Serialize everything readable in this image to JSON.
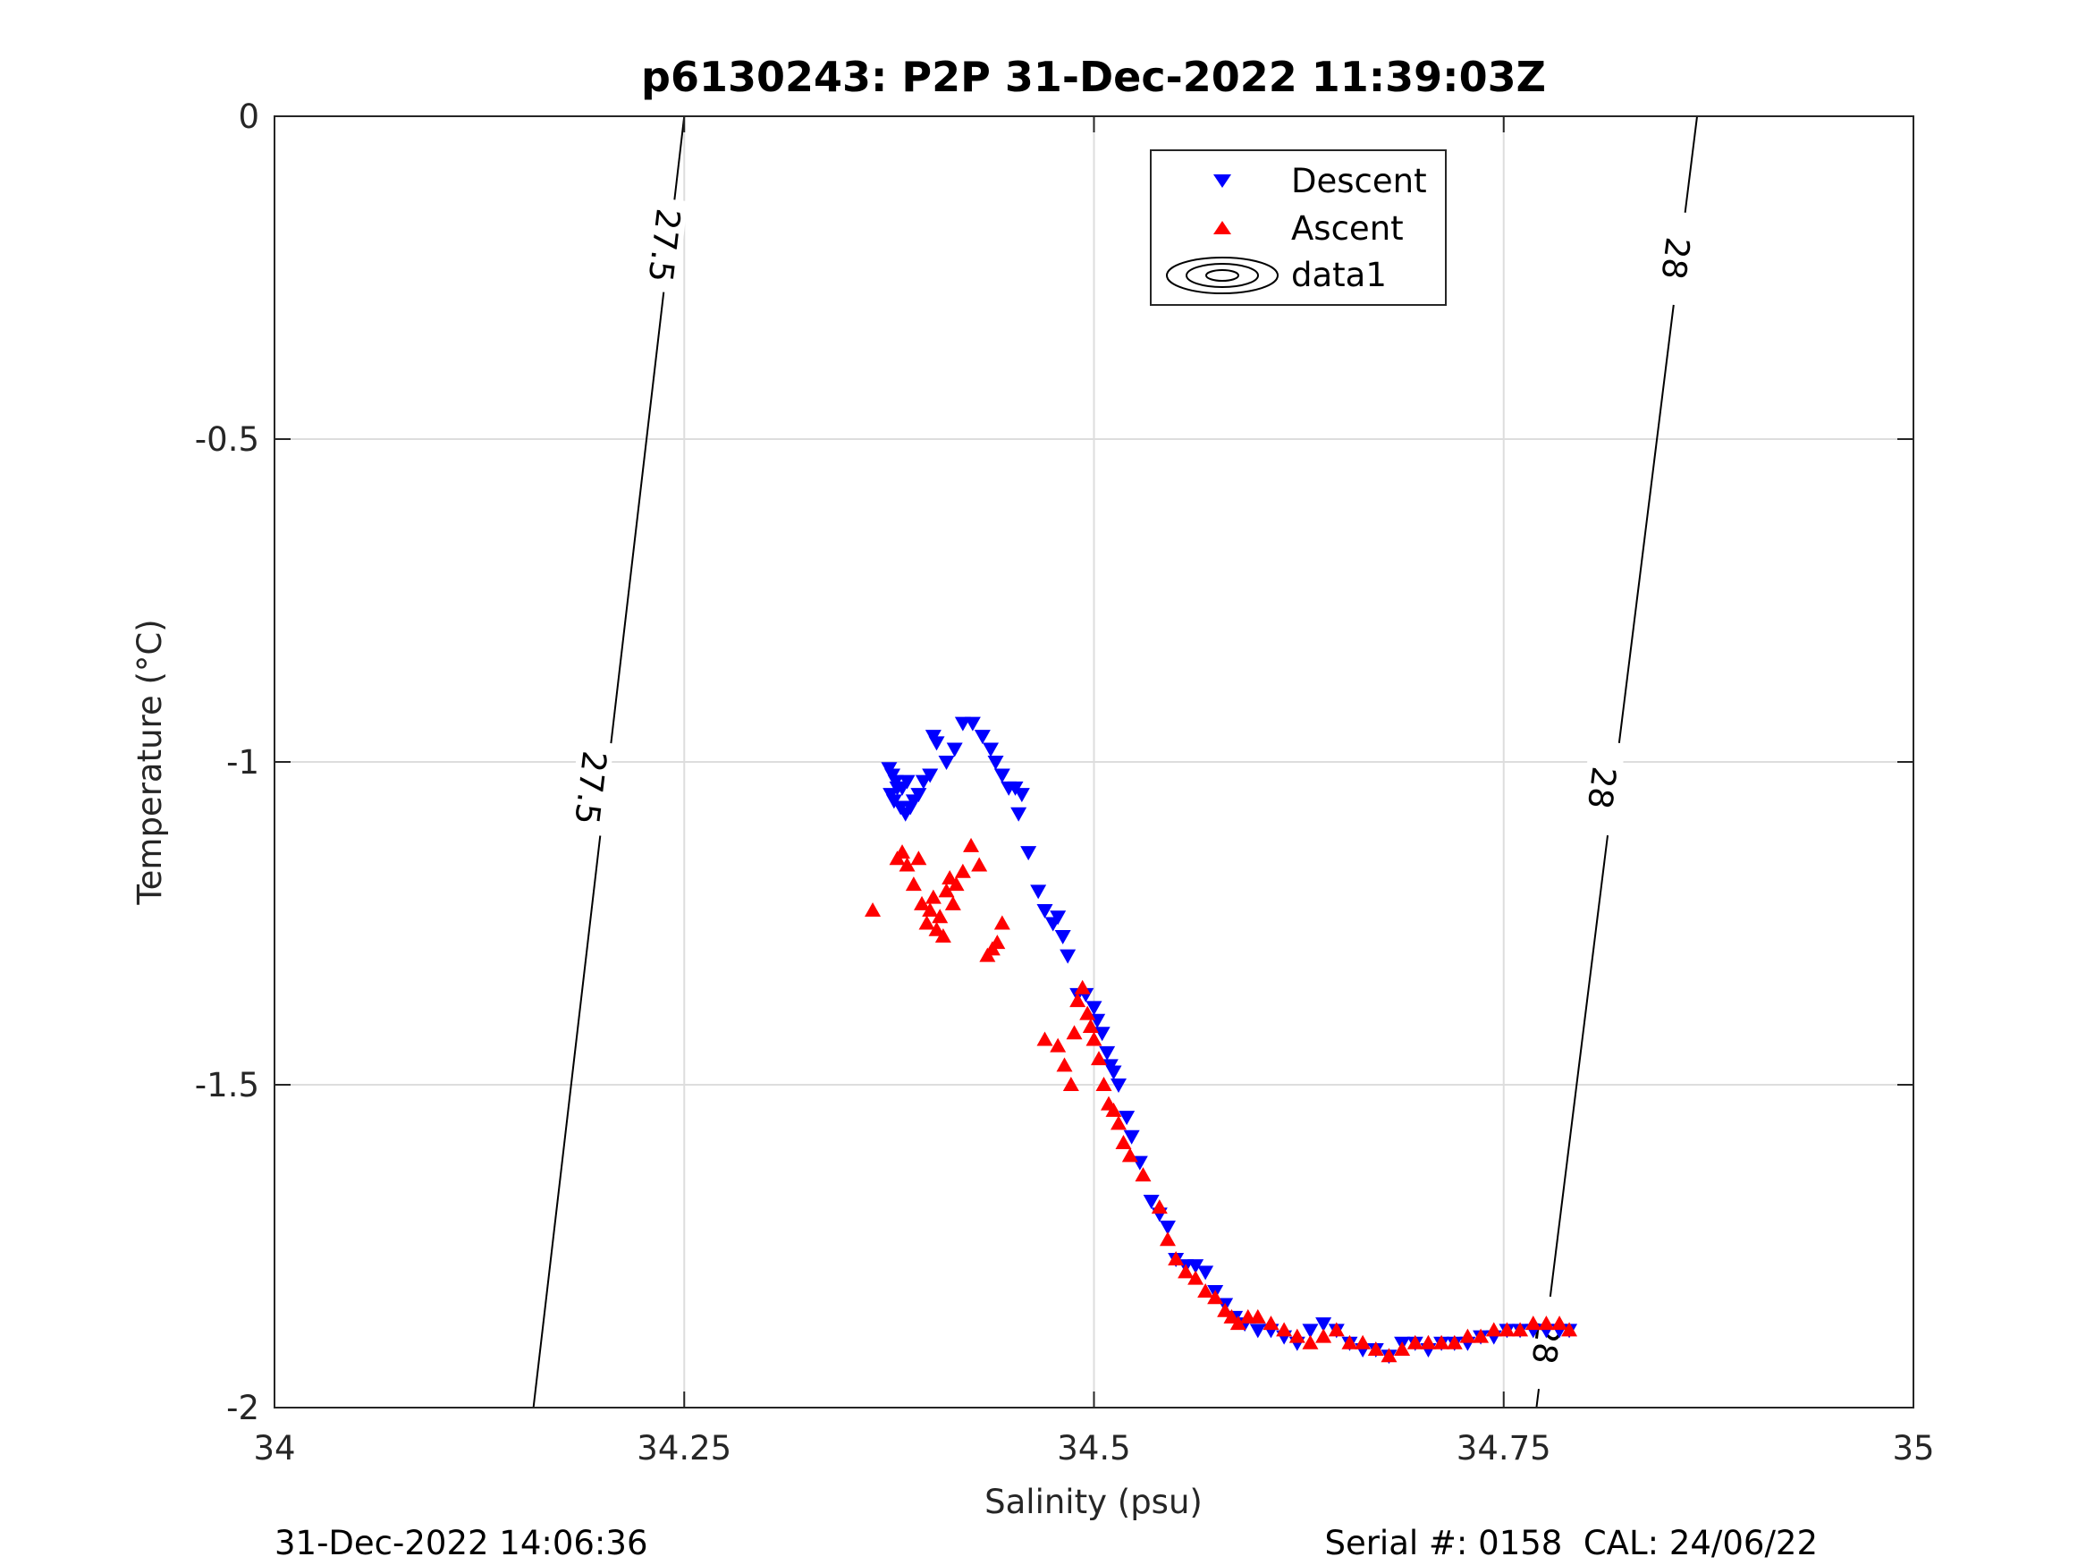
{
  "chart_data": {
    "type": "scatter",
    "title": "p6130243: P2P 31-Dec-2022 11:39:03Z",
    "xlabel": "Salinity (psu)",
    "ylabel": "Temperature (°C)",
    "xlim": [
      34,
      35
    ],
    "ylim": [
      -2,
      0
    ],
    "x_ticks": [
      34,
      34.25,
      34.5,
      34.75,
      35
    ],
    "x_tick_labels": [
      "34",
      "34.25",
      "34.5",
      "34.75",
      "35"
    ],
    "y_ticks": [
      0,
      -0.5,
      -1,
      -1.5,
      -2
    ],
    "y_tick_labels": [
      "0",
      "-0.5",
      "-1",
      "-1.5",
      "-2"
    ],
    "grid": true,
    "legend": {
      "placement": "top-center",
      "entries": [
        "Descent",
        "Ascent",
        "data1"
      ]
    },
    "colors": {
      "descent": "#0000ff",
      "ascent": "#ff0000",
      "contour": "#000000",
      "grid": "#dddddd"
    },
    "contours": [
      {
        "level": "27.5",
        "points": [
          [
            34.158,
            -2
          ],
          [
            34.25,
            0
          ]
        ],
        "label_positions": [
          [
            34.193,
            -1.04
          ],
          [
            34.238,
            -0.2
          ]
        ]
      },
      {
        "level": "28",
        "points": [
          [
            34.77,
            -2
          ],
          [
            34.868,
            0
          ]
        ],
        "label_positions": [
          [
            34.81,
            -1.04
          ],
          [
            34.855,
            -0.22
          ],
          [
            34.776,
            -1.9
          ]
        ]
      }
    ],
    "series": [
      {
        "name": "Descent",
        "marker": "triangle-down",
        "points": [
          [
            34.375,
            -1.01
          ],
          [
            34.377,
            -1.02
          ],
          [
            34.379,
            -1.03
          ],
          [
            34.38,
            -1.04
          ],
          [
            34.376,
            -1.05
          ],
          [
            34.378,
            -1.06
          ],
          [
            34.382,
            -1.07
          ],
          [
            34.385,
            -1.08
          ],
          [
            34.388,
            -1.07
          ],
          [
            34.39,
            -1.06
          ],
          [
            34.383,
            -1.04
          ],
          [
            34.386,
            -1.03
          ],
          [
            34.393,
            -1.05
          ],
          [
            34.396,
            -1.03
          ],
          [
            34.4,
            -1.02
          ],
          [
            34.404,
            -0.97
          ],
          [
            34.402,
            -0.96
          ],
          [
            34.41,
            -1.0
          ],
          [
            34.415,
            -0.98
          ],
          [
            34.42,
            -0.94
          ],
          [
            34.426,
            -0.94
          ],
          [
            34.432,
            -0.96
          ],
          [
            34.437,
            -0.98
          ],
          [
            34.44,
            -1.0
          ],
          [
            34.444,
            -1.02
          ],
          [
            34.448,
            -1.04
          ],
          [
            34.452,
            -1.04
          ],
          [
            34.456,
            -1.05
          ],
          [
            34.454,
            -1.08
          ],
          [
            34.46,
            -1.14
          ],
          [
            34.466,
            -1.2
          ],
          [
            34.47,
            -1.23
          ],
          [
            34.475,
            -1.25
          ],
          [
            34.478,
            -1.24
          ],
          [
            34.481,
            -1.27
          ],
          [
            34.484,
            -1.3
          ],
          [
            34.49,
            -1.36
          ],
          [
            34.495,
            -1.36
          ],
          [
            34.5,
            -1.38
          ],
          [
            34.502,
            -1.4
          ],
          [
            34.505,
            -1.42
          ],
          [
            34.508,
            -1.45
          ],
          [
            34.51,
            -1.47
          ],
          [
            34.512,
            -1.48
          ],
          [
            34.515,
            -1.5
          ],
          [
            34.52,
            -1.55
          ],
          [
            34.523,
            -1.58
          ],
          [
            34.528,
            -1.62
          ],
          [
            34.535,
            -1.68
          ],
          [
            34.54,
            -1.7
          ],
          [
            34.545,
            -1.72
          ],
          [
            34.55,
            -1.77
          ],
          [
            34.556,
            -1.78
          ],
          [
            34.562,
            -1.78
          ],
          [
            34.568,
            -1.79
          ],
          [
            34.574,
            -1.82
          ],
          [
            34.58,
            -1.84
          ],
          [
            34.586,
            -1.86
          ],
          [
            34.592,
            -1.87
          ],
          [
            34.6,
            -1.88
          ],
          [
            34.608,
            -1.88
          ],
          [
            34.616,
            -1.89
          ],
          [
            34.624,
            -1.9
          ],
          [
            34.632,
            -1.88
          ],
          [
            34.64,
            -1.87
          ],
          [
            34.648,
            -1.88
          ],
          [
            34.656,
            -1.9
          ],
          [
            34.664,
            -1.91
          ],
          [
            34.672,
            -1.91
          ],
          [
            34.68,
            -1.92
          ],
          [
            34.688,
            -1.9
          ],
          [
            34.696,
            -1.9
          ],
          [
            34.704,
            -1.91
          ],
          [
            34.712,
            -1.9
          ],
          [
            34.72,
            -1.9
          ],
          [
            34.728,
            -1.9
          ],
          [
            34.736,
            -1.89
          ],
          [
            34.744,
            -1.89
          ],
          [
            34.752,
            -1.88
          ],
          [
            34.76,
            -1.88
          ],
          [
            34.768,
            -1.88
          ],
          [
            34.776,
            -1.88
          ],
          [
            34.784,
            -1.88
          ],
          [
            34.79,
            -1.88
          ]
        ]
      },
      {
        "name": "Ascent",
        "marker": "triangle-up",
        "points": [
          [
            34.365,
            -1.23
          ],
          [
            34.38,
            -1.15
          ],
          [
            34.383,
            -1.14
          ],
          [
            34.386,
            -1.16
          ],
          [
            34.39,
            -1.19
          ],
          [
            34.393,
            -1.15
          ],
          [
            34.395,
            -1.22
          ],
          [
            34.398,
            -1.25
          ],
          [
            34.4,
            -1.23
          ],
          [
            34.402,
            -1.21
          ],
          [
            34.404,
            -1.26
          ],
          [
            34.406,
            -1.24
          ],
          [
            34.408,
            -1.27
          ],
          [
            34.41,
            -1.2
          ],
          [
            34.412,
            -1.18
          ],
          [
            34.414,
            -1.22
          ],
          [
            34.416,
            -1.19
          ],
          [
            34.42,
            -1.17
          ],
          [
            34.425,
            -1.13
          ],
          [
            34.43,
            -1.16
          ],
          [
            34.435,
            -1.3
          ],
          [
            34.438,
            -1.29
          ],
          [
            34.441,
            -1.28
          ],
          [
            34.444,
            -1.25
          ],
          [
            34.47,
            -1.43
          ],
          [
            34.478,
            -1.44
          ],
          [
            34.482,
            -1.47
          ],
          [
            34.486,
            -1.5
          ],
          [
            34.488,
            -1.42
          ],
          [
            34.49,
            -1.37
          ],
          [
            34.493,
            -1.35
          ],
          [
            34.496,
            -1.39
          ],
          [
            34.498,
            -1.41
          ],
          [
            34.5,
            -1.43
          ],
          [
            34.503,
            -1.46
          ],
          [
            34.506,
            -1.5
          ],
          [
            34.509,
            -1.53
          ],
          [
            34.512,
            -1.54
          ],
          [
            34.515,
            -1.56
          ],
          [
            34.518,
            -1.59
          ],
          [
            34.522,
            -1.61
          ],
          [
            34.53,
            -1.64
          ],
          [
            34.54,
            -1.69
          ],
          [
            34.545,
            -1.74
          ],
          [
            34.55,
            -1.77
          ],
          [
            34.556,
            -1.79
          ],
          [
            34.562,
            -1.8
          ],
          [
            34.568,
            -1.82
          ],
          [
            34.574,
            -1.83
          ],
          [
            34.58,
            -1.85
          ],
          [
            34.584,
            -1.86
          ],
          [
            34.588,
            -1.87
          ],
          [
            34.594,
            -1.86
          ],
          [
            34.6,
            -1.86
          ],
          [
            34.608,
            -1.87
          ],
          [
            34.616,
            -1.88
          ],
          [
            34.624,
            -1.89
          ],
          [
            34.632,
            -1.9
          ],
          [
            34.64,
            -1.89
          ],
          [
            34.648,
            -1.88
          ],
          [
            34.656,
            -1.9
          ],
          [
            34.664,
            -1.9
          ],
          [
            34.672,
            -1.91
          ],
          [
            34.68,
            -1.92
          ],
          [
            34.688,
            -1.91
          ],
          [
            34.696,
            -1.9
          ],
          [
            34.704,
            -1.9
          ],
          [
            34.712,
            -1.9
          ],
          [
            34.72,
            -1.9
          ],
          [
            34.728,
            -1.89
          ],
          [
            34.736,
            -1.89
          ],
          [
            34.744,
            -1.88
          ],
          [
            34.752,
            -1.88
          ],
          [
            34.76,
            -1.88
          ],
          [
            34.768,
            -1.87
          ],
          [
            34.776,
            -1.87
          ],
          [
            34.784,
            -1.87
          ],
          [
            34.79,
            -1.88
          ]
        ]
      }
    ]
  },
  "footer": {
    "timestamp": "31-Dec-2022 14:06:36",
    "serial": "Serial #: 0158  CAL: 24/06/22"
  }
}
